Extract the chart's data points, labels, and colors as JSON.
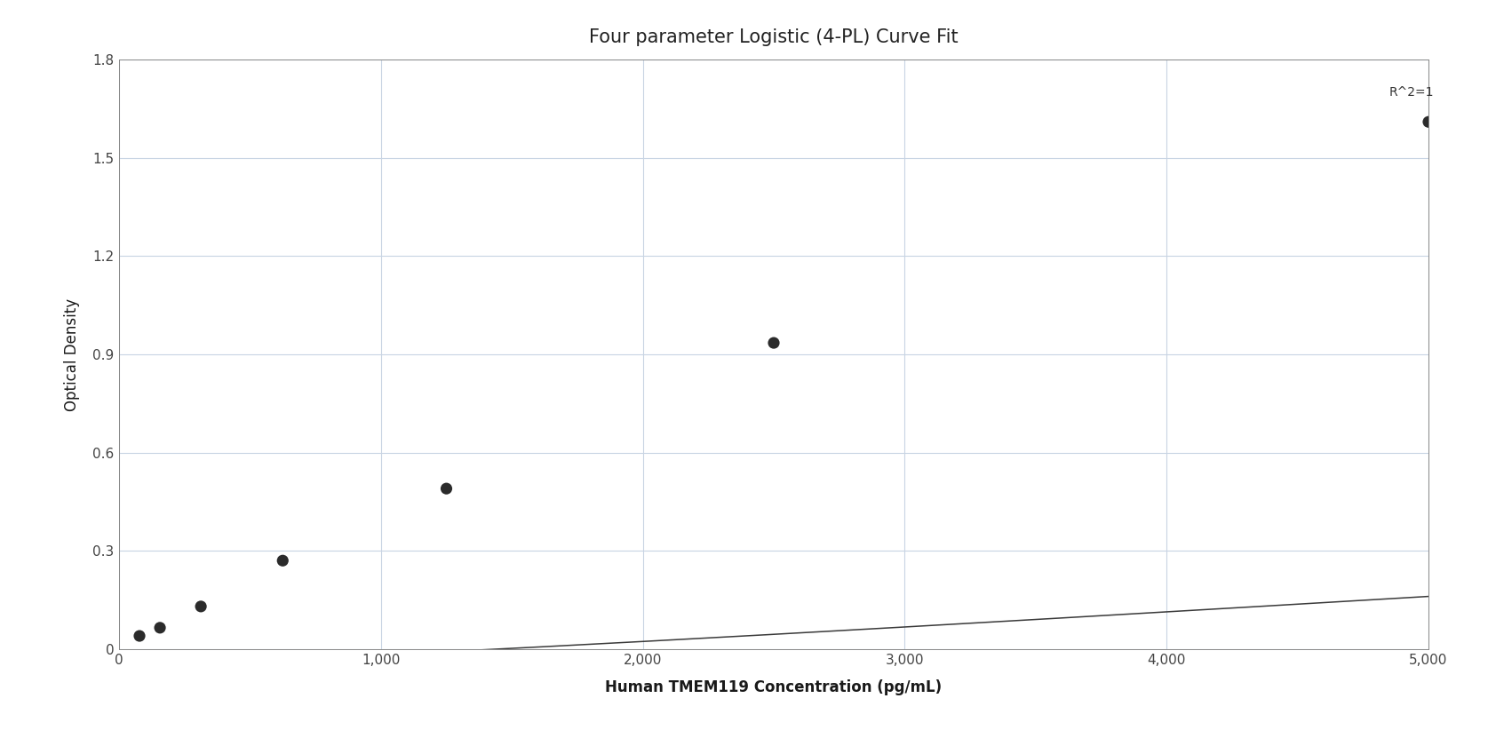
{
  "title": "Four parameter Logistic (4-PL) Curve Fit",
  "xlabel": "Human TMEM119 Concentration (pg/mL)",
  "ylabel": "Optical Density",
  "data_x": [
    78.1,
    156.25,
    312.5,
    625,
    1250,
    2500,
    5000
  ],
  "data_y": [
    0.04,
    0.065,
    0.13,
    0.27,
    0.49,
    0.935,
    1.61
  ],
  "r_squared": "R^2=1",
  "xlim": [
    0,
    5000
  ],
  "ylim": [
    0,
    1.8
  ],
  "yticks": [
    0,
    0.3,
    0.6,
    0.9,
    1.2,
    1.5,
    1.8
  ],
  "xticks": [
    0,
    1000,
    2000,
    3000,
    4000,
    5000
  ],
  "background_color": "#ffffff",
  "grid_color": "#c8d4e3",
  "line_color": "#3a3a3a",
  "dot_color": "#2b2b2b",
  "dot_size": 90,
  "title_fontsize": 15,
  "label_fontsize": 12,
  "tick_fontsize": 11
}
